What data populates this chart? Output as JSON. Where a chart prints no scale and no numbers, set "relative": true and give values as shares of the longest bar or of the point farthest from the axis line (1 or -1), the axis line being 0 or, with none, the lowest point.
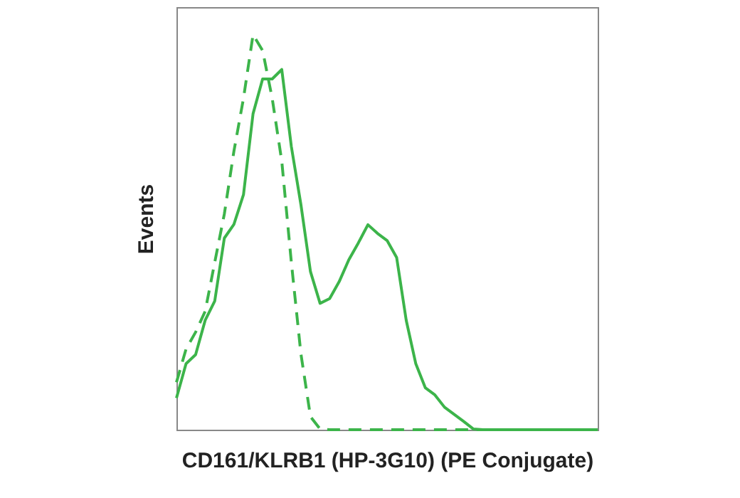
{
  "chart_data": {
    "type": "line",
    "relative": true,
    "xlabel": "CD161/KLRB1 (HP-3G10) (PE Conjugate)",
    "ylabel": "Events",
    "categories": [
      null,
      null,
      null,
      null,
      null,
      null,
      null,
      null,
      null,
      null,
      null,
      null,
      null,
      null,
      null,
      null,
      null,
      null,
      null,
      null,
      null,
      null,
      null,
      null,
      null,
      null,
      null,
      null,
      null,
      null,
      null,
      null,
      null,
      null,
      null,
      null,
      null,
      null,
      null,
      null,
      null,
      null,
      null,
      null,
      null
    ],
    "series": [
      {
        "color": "#3cb44a",
        "line_style": "solid",
        "values": [
          0.08,
          0.167,
          0.19,
          0.277,
          0.326,
          0.485,
          0.52,
          0.595,
          0.8,
          0.888,
          0.888,
          0.912,
          0.717,
          0.57,
          0.4,
          0.32,
          0.332,
          0.375,
          0.43,
          0.473,
          0.519,
          0.497,
          0.479,
          0.436,
          0.277,
          0.167,
          0.106,
          0.088,
          0.057,
          0.039,
          0.021,
          0.002,
          0,
          0,
          0,
          0,
          0,
          0,
          0,
          0,
          0,
          0,
          0,
          0,
          0
        ]
      },
      {
        "color": "#3cb44a",
        "line_style": "dashed",
        "values": [
          0.12,
          0.204,
          0.247,
          0.3,
          0.424,
          0.546,
          0.705,
          0.839,
          1,
          0.96,
          0.839,
          0.68,
          0.424,
          0.192,
          0.033,
          0.002,
          0,
          0,
          0,
          0,
          0,
          0,
          0,
          0,
          0,
          0,
          0,
          0,
          0,
          0,
          0,
          0,
          0,
          0,
          0,
          0,
          0,
          0,
          0,
          0,
          0,
          0,
          0,
          0,
          0
        ]
      }
    ]
  }
}
